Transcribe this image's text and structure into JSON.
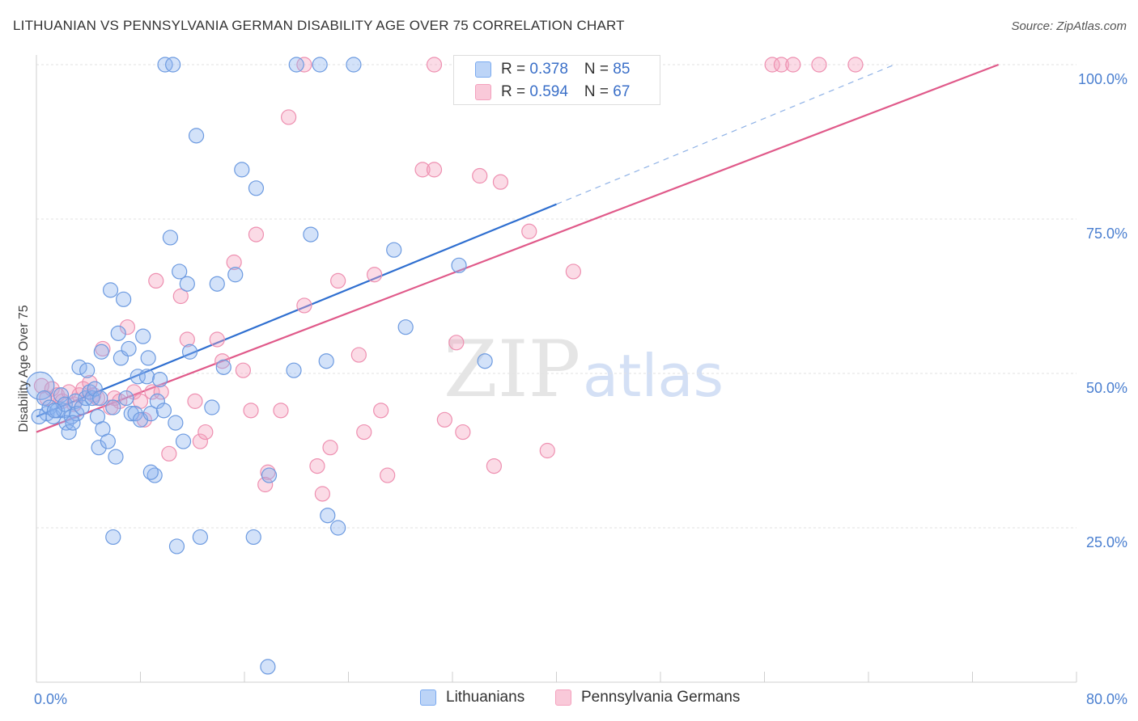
{
  "title": "LITHUANIAN VS PENNSYLVANIA GERMAN DISABILITY AGE OVER 75 CORRELATION CHART",
  "source": "Source: ZipAtlas.com",
  "watermark": {
    "zip": "ZIP",
    "atlas": "atlas"
  },
  "legend_top": [
    {
      "r_label": "R = ",
      "r_value": "0.378",
      "n_label": "N = ",
      "n_value": "85"
    },
    {
      "r_label": "R = ",
      "r_value": "0.594",
      "n_label": "N = ",
      "n_value": "67"
    }
  ],
  "chart_data": {
    "type": "scatter",
    "title": "LITHUANIAN VS PENNSYLVANIA GERMAN DISABILITY AGE OVER 75 CORRELATION CHART",
    "xlabel": "",
    "ylabel": "Disability Age Over 75",
    "xlim": [
      0,
      80
    ],
    "ylim": [
      0,
      100
    ],
    "x_tick_labels": [
      "0.0%",
      "80.0%"
    ],
    "y_ticks": [
      25,
      50,
      75,
      100
    ],
    "y_tick_labels": [
      "25.0%",
      "50.0%",
      "75.0%",
      "100.0%"
    ],
    "grid": true,
    "legend_position": "bottom",
    "colors": {
      "lithuanians": "#7aaaf0",
      "pennsylvania_germans": "#f4a0bd",
      "lithuanians_line": "#2f6fd0",
      "pennsylvania_germans_line": "#e05a8a"
    },
    "series": [
      {
        "name": "Lithuanians",
        "r": 0.378,
        "n": 85,
        "trend": {
          "x": [
            0,
            40
          ],
          "y": [
            43,
            77.4
          ]
        },
        "trend_extended": {
          "x": [
            40,
            66
          ],
          "y": [
            77.4,
            100
          ]
        },
        "points": [
          [
            0.3,
            48.0
          ],
          [
            0.6,
            46.0
          ],
          [
            0.8,
            43.5
          ],
          [
            1.0,
            44.5
          ],
          [
            1.3,
            43.0
          ],
          [
            1.6,
            44.0
          ],
          [
            1.9,
            46.5
          ],
          [
            2.1,
            44.0
          ],
          [
            2.2,
            45.0
          ],
          [
            2.3,
            42.0
          ],
          [
            2.5,
            40.5
          ],
          [
            2.7,
            43.0
          ],
          [
            3.0,
            45.5
          ],
          [
            3.1,
            43.5
          ],
          [
            3.3,
            51.0
          ],
          [
            3.5,
            44.5
          ],
          [
            3.8,
            46.0
          ],
          [
            3.9,
            50.5
          ],
          [
            4.1,
            47.0
          ],
          [
            4.3,
            46.0
          ],
          [
            4.5,
            47.5
          ],
          [
            4.7,
            43.0
          ],
          [
            4.8,
            38.0
          ],
          [
            5.0,
            53.5
          ],
          [
            5.1,
            41.0
          ],
          [
            5.5,
            39.0
          ],
          [
            5.7,
            63.5
          ],
          [
            5.9,
            44.5
          ],
          [
            6.1,
            36.5
          ],
          [
            6.3,
            56.5
          ],
          [
            6.5,
            52.5
          ],
          [
            6.7,
            62.0
          ],
          [
            6.9,
            46.0
          ],
          [
            7.1,
            54.0
          ],
          [
            7.3,
            43.5
          ],
          [
            7.6,
            43.5
          ],
          [
            7.8,
            49.5
          ],
          [
            8.0,
            42.5
          ],
          [
            8.2,
            56.0
          ],
          [
            8.5,
            49.5
          ],
          [
            8.6,
            52.5
          ],
          [
            8.8,
            43.5
          ],
          [
            9.1,
            33.5
          ],
          [
            9.3,
            45.5
          ],
          [
            9.5,
            49.0
          ],
          [
            9.8,
            44.0
          ],
          [
            10.3,
            72.0
          ],
          [
            10.7,
            42.0
          ],
          [
            11.0,
            66.5
          ],
          [
            11.3,
            39.0
          ],
          [
            11.6,
            64.5
          ],
          [
            11.8,
            53.5
          ],
          [
            12.3,
            88.5
          ],
          [
            13.5,
            44.5
          ],
          [
            13.9,
            64.5
          ],
          [
            14.4,
            51.0
          ],
          [
            15.3,
            66.0
          ],
          [
            15.8,
            83.0
          ],
          [
            16.9,
            80.0
          ],
          [
            17.9,
            33.5
          ],
          [
            19.8,
            50.5
          ],
          [
            21.1,
            72.5
          ],
          [
            22.3,
            52.0
          ],
          [
            22.4,
            27.0
          ],
          [
            23.2,
            25.0
          ],
          [
            27.5,
            70.0
          ],
          [
            28.4,
            57.5
          ],
          [
            32.5,
            67.5
          ],
          [
            34.5,
            52.0
          ],
          [
            35.9,
            100.0
          ],
          [
            5.9,
            23.5
          ],
          [
            8.8,
            34.0
          ],
          [
            10.8,
            22.0
          ],
          [
            12.6,
            23.5
          ],
          [
            16.7,
            23.5
          ],
          [
            17.8,
            2.5
          ],
          [
            9.9,
            100.0
          ],
          [
            10.5,
            100.0
          ],
          [
            20.0,
            100.0
          ],
          [
            21.8,
            100.0
          ],
          [
            24.4,
            100.0
          ],
          [
            1.4,
            44.0
          ],
          [
            2.8,
            42.0
          ],
          [
            4.9,
            46.0
          ],
          [
            0.2,
            43.0
          ]
        ]
      },
      {
        "name": "Pennsylvania Germans",
        "r": 0.594,
        "n": 67,
        "trend": {
          "x": [
            0,
            74
          ],
          "y": [
            40.5,
            100
          ]
        },
        "points": [
          [
            0.4,
            48.0
          ],
          [
            0.8,
            46.0
          ],
          [
            1.2,
            47.5
          ],
          [
            1.6,
            46.5
          ],
          [
            2.0,
            45.5
          ],
          [
            2.5,
            47.0
          ],
          [
            2.9,
            45.0
          ],
          [
            3.3,
            46.5
          ],
          [
            3.6,
            47.5
          ],
          [
            4.1,
            48.5
          ],
          [
            4.4,
            46.5
          ],
          [
            4.7,
            46.0
          ],
          [
            5.1,
            54.0
          ],
          [
            5.7,
            44.5
          ],
          [
            6.0,
            46.0
          ],
          [
            6.4,
            45.5
          ],
          [
            7.0,
            57.5
          ],
          [
            7.5,
            47.0
          ],
          [
            8.0,
            45.5
          ],
          [
            8.3,
            42.5
          ],
          [
            8.9,
            47.0
          ],
          [
            9.2,
            65.0
          ],
          [
            9.6,
            47.0
          ],
          [
            10.2,
            37.0
          ],
          [
            11.1,
            62.5
          ],
          [
            11.6,
            55.5
          ],
          [
            12.2,
            45.5
          ],
          [
            12.6,
            39.0
          ],
          [
            13.0,
            40.5
          ],
          [
            13.9,
            55.5
          ],
          [
            14.3,
            52.0
          ],
          [
            15.2,
            68.0
          ],
          [
            15.9,
            50.5
          ],
          [
            16.5,
            44.0
          ],
          [
            16.9,
            72.5
          ],
          [
            17.8,
            34.0
          ],
          [
            18.8,
            44.0
          ],
          [
            19.4,
            91.5
          ],
          [
            20.6,
            61.0
          ],
          [
            21.6,
            35.0
          ],
          [
            22.6,
            38.0
          ],
          [
            23.2,
            65.0
          ],
          [
            24.8,
            53.0
          ],
          [
            25.2,
            40.5
          ],
          [
            26.0,
            66.0
          ],
          [
            26.5,
            44.0
          ],
          [
            27.0,
            33.5
          ],
          [
            29.7,
            83.0
          ],
          [
            30.6,
            83.0
          ],
          [
            31.4,
            42.5
          ],
          [
            32.3,
            55.0
          ],
          [
            32.8,
            40.5
          ],
          [
            34.1,
            82.0
          ],
          [
            35.2,
            35.0
          ],
          [
            35.7,
            81.0
          ],
          [
            37.9,
            73.0
          ],
          [
            39.3,
            37.5
          ],
          [
            41.3,
            66.5
          ],
          [
            22.0,
            30.5
          ],
          [
            17.6,
            32.0
          ],
          [
            20.6,
            100.0
          ],
          [
            30.6,
            100.0
          ],
          [
            56.6,
            100.0
          ],
          [
            57.3,
            100.0
          ],
          [
            58.2,
            100.0
          ],
          [
            60.2,
            100.0
          ],
          [
            63.0,
            100.0
          ]
        ]
      }
    ]
  }
}
